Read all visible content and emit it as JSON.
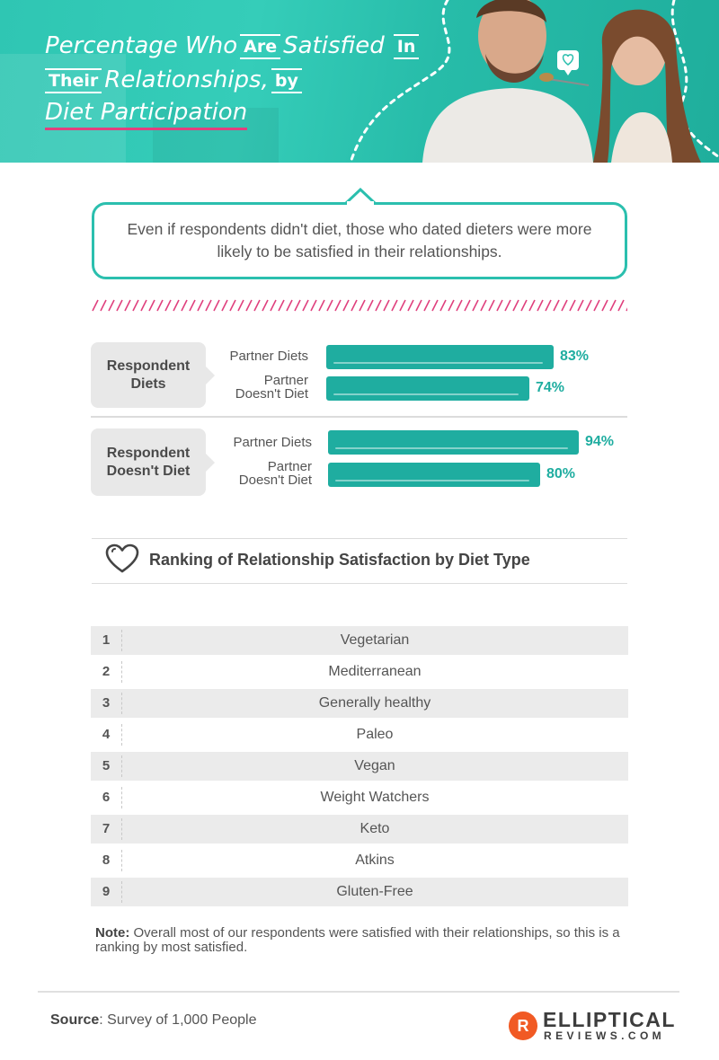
{
  "header": {
    "title_parts": {
      "p1": "Percentage Who",
      "b1": "Are",
      "p2": "Satisfied",
      "b2": "In",
      "b3": "Their",
      "p3": "Relationships,",
      "b4": "by",
      "p4": "Diet Participation"
    }
  },
  "callout": {
    "text": "Even if respondents didn't diet, those who dated dieters were more likely to be satisfied in their relationships."
  },
  "chart_data": {
    "type": "bar",
    "orientation": "horizontal",
    "groups": [
      {
        "label": "Respondent Diets",
        "bars": [
          {
            "category": "Partner Diets",
            "value": 83,
            "label": "83%"
          },
          {
            "category": "Partner Doesn't Diet",
            "value": 74,
            "label": "74%"
          }
        ]
      },
      {
        "label": "Respondent Doesn't Diet",
        "bars": [
          {
            "category": "Partner Diets",
            "value": 94,
            "label": "94%"
          },
          {
            "category": "Partner Doesn't Diet",
            "value": 80,
            "label": "80%"
          }
        ]
      }
    ],
    "units": "%",
    "colors": {
      "bar": "#1fada0",
      "value_label": "#1fada0"
    }
  },
  "ranking": {
    "title": "Ranking of Relationship Satisfaction by Diet Type",
    "items": [
      {
        "rank": "1",
        "name": "Vegetarian"
      },
      {
        "rank": "2",
        "name": "Mediterranean"
      },
      {
        "rank": "3",
        "name": "Generally healthy"
      },
      {
        "rank": "4",
        "name": "Paleo"
      },
      {
        "rank": "5",
        "name": "Vegan"
      },
      {
        "rank": "6",
        "name": "Weight Watchers"
      },
      {
        "rank": "7",
        "name": "Keto"
      },
      {
        "rank": "8",
        "name": "Atkins"
      },
      {
        "rank": "9",
        "name": "Gluten-Free"
      }
    ]
  },
  "note": {
    "label": "Note:",
    "text": "Overall most of our respondents were satisfied with their relationships, so this is a ranking by most satisfied."
  },
  "footer": {
    "source_label": "Source",
    "source_text": ": Survey of 1,000 People",
    "logo_mark": "R",
    "logo_word": "ELLIPTICAL",
    "logo_sub": "REVIEWS.COM"
  },
  "icons": [
    "heart-icon",
    "chat-heart-icon"
  ],
  "colors": {
    "teal": "#2bbfae",
    "pink": "#e0407e",
    "orange": "#f15a24"
  }
}
